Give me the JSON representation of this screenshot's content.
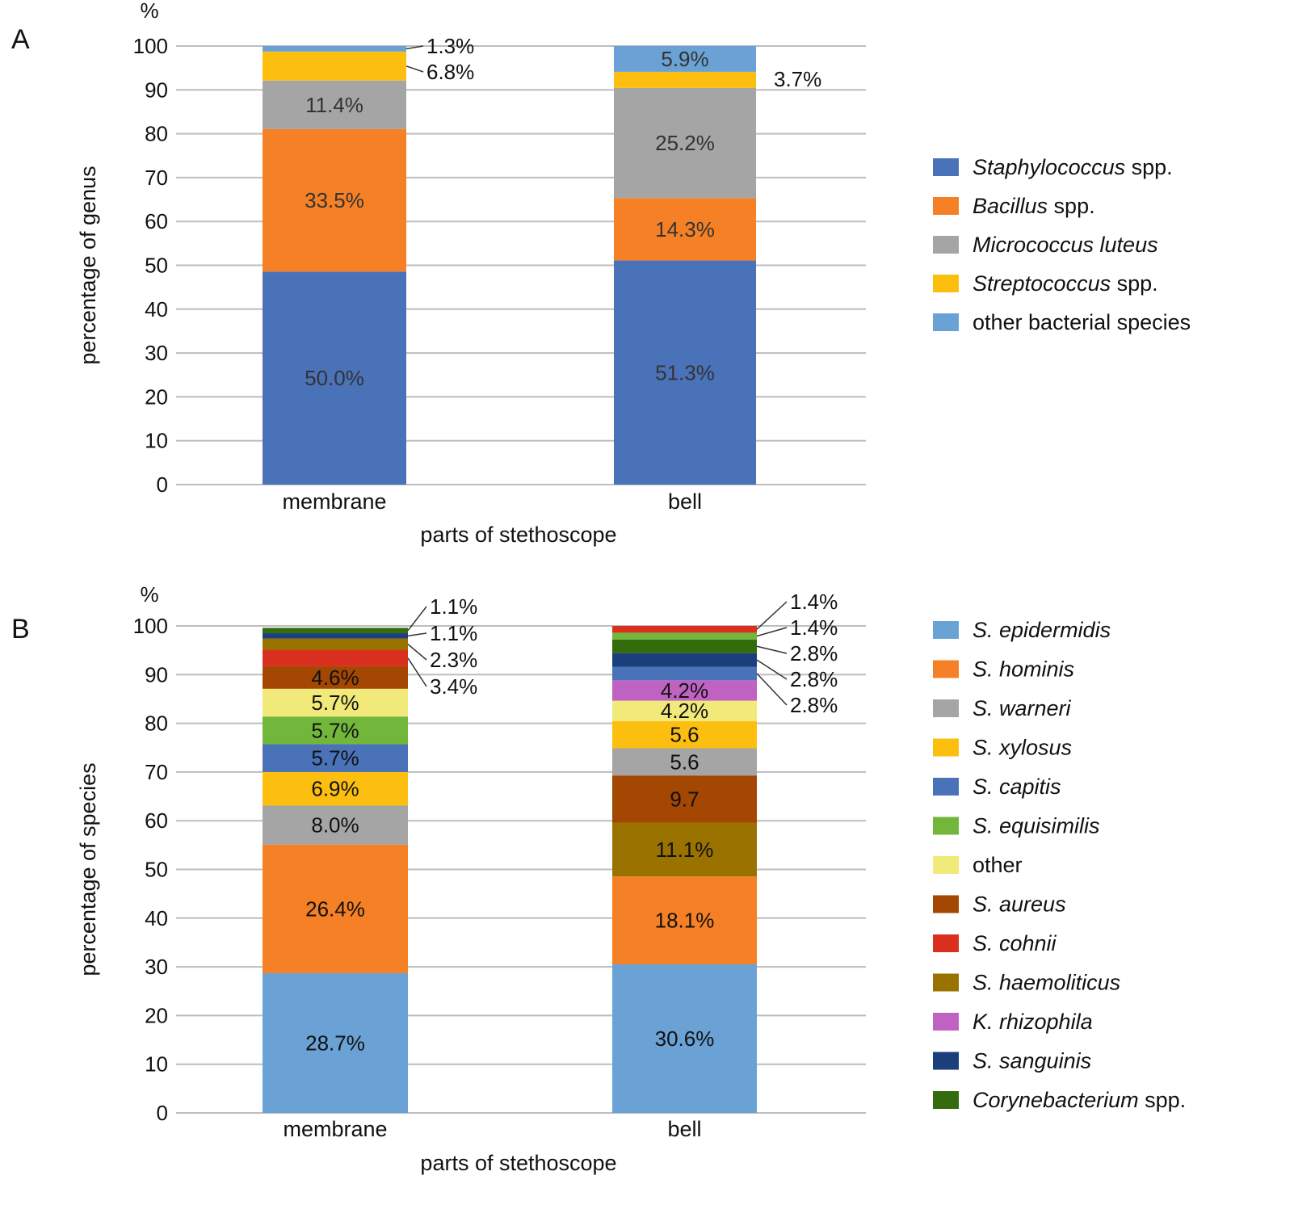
{
  "chart_data": [
    {
      "panel": "A",
      "type": "bar",
      "stacked": true,
      "unit_label": "%",
      "ylabel": "percentage of genus",
      "xlabel": "parts of stethoscope",
      "categories": [
        "membrane",
        "bell"
      ],
      "ylim": [
        0,
        100
      ],
      "yticks": [
        "0",
        "10",
        "20",
        "30",
        "40",
        "50",
        "60",
        "70",
        "80",
        "90",
        "100"
      ],
      "grid": true,
      "legend_position": "right",
      "series": [
        {
          "name_italic": "Staphylococcus",
          "name_plain": " spp.",
          "color": "#4a72b9",
          "values": [
            50.0,
            51.3
          ],
          "labels": [
            "50.0%",
            "51.3%"
          ]
        },
        {
          "name_italic": "Bacillus",
          "name_plain": " spp.",
          "color": "#f58025",
          "values": [
            33.5,
            14.3
          ],
          "labels": [
            "33.5%",
            "14.3%"
          ]
        },
        {
          "name_italic": "Micrococcus luteus",
          "name_plain": "",
          "color": "#a5a5a5",
          "values": [
            11.4,
            25.2
          ],
          "labels": [
            "11.4%",
            "25.2%"
          ]
        },
        {
          "name_italic": "Streptococcus",
          "name_plain": " spp.",
          "color": "#fdbf0f",
          "values": [
            6.8,
            3.7
          ],
          "labels": [
            "6.8%",
            "3.7%"
          ]
        },
        {
          "name_italic": "",
          "name_plain": "other bacterial species",
          "color": "#6aa2d5",
          "values": [
            1.3,
            5.9
          ],
          "labels": [
            "1.3%",
            "5.9%"
          ]
        }
      ]
    },
    {
      "panel": "B",
      "type": "bar",
      "stacked": true,
      "unit_label": "%",
      "ylabel": "percentage of species",
      "xlabel": "parts of stethoscope",
      "categories": [
        "membrane",
        "bell"
      ],
      "ylim": [
        0,
        100
      ],
      "yticks": [
        "0",
        "10",
        "20",
        "30",
        "40",
        "50",
        "60",
        "70",
        "80",
        "90",
        "100"
      ],
      "grid": true,
      "legend_position": "right",
      "series": [
        {
          "name_italic": "S. epidermidis",
          "name_plain": "",
          "color": "#6aa2d5",
          "values": [
            28.7,
            30.6
          ],
          "labels": [
            "28.7%",
            "30.6%"
          ]
        },
        {
          "name_italic": "S. hominis",
          "name_plain": "",
          "color": "#f58025",
          "values": [
            26.4,
            18.1
          ],
          "labels": [
            "26.4%",
            "18.1%"
          ]
        },
        {
          "name_italic": "S. warneri",
          "name_plain": "",
          "color": "#a5a5a5",
          "values": [
            8.0,
            5.6
          ],
          "labels": [
            "8.0%",
            "5.6"
          ]
        },
        {
          "name_italic": "S. xylosus",
          "name_plain": "",
          "color": "#fdbf0f",
          "values": [
            6.9,
            5.6
          ],
          "labels": [
            "6.9%",
            "5.6"
          ]
        },
        {
          "name_italic": "S. capitis",
          "name_plain": "",
          "color": "#4a72b9",
          "values": [
            5.7,
            2.8
          ],
          "labels": [
            "5.7%",
            "2.8%"
          ]
        },
        {
          "name_italic": "S. equisimilis",
          "name_plain": "",
          "color": "#72b73b",
          "values": [
            5.7,
            1.4
          ],
          "labels": [
            "5.7%",
            "1.4%"
          ]
        },
        {
          "name_italic": "",
          "name_plain": "other",
          "color": "#f1ea7a",
          "values": [
            5.7,
            4.2
          ],
          "labels": [
            "5.7%",
            "4.2%"
          ]
        },
        {
          "name_italic": "S. aureus",
          "name_plain": "",
          "color": "#a34702",
          "values": [
            4.6,
            9.7
          ],
          "labels": [
            "4.6%",
            "9.7"
          ]
        },
        {
          "name_italic": "S. cohnii",
          "name_plain": "",
          "color": "#d9301f",
          "values": [
            3.4,
            1.4
          ],
          "labels": [
            "3.4%",
            "1.4%"
          ]
        },
        {
          "name_italic": "S. haemoliticus",
          "name_plain": "",
          "color": "#9a7200",
          "values": [
            2.3,
            11.1
          ],
          "labels": [
            "2.3%",
            "11.1%"
          ]
        },
        {
          "name_italic": "K. rhizophila",
          "name_plain": "",
          "color": "#bf62c2",
          "values": [
            0,
            4.2
          ],
          "labels": [
            null,
            "4.2%"
          ]
        },
        {
          "name_italic": "S. sanguinis",
          "name_plain": "",
          "color": "#1b3f7a",
          "values": [
            1.1,
            2.8
          ],
          "labels": [
            "1.1%",
            "2.8%"
          ]
        },
        {
          "name_italic": "Corynebacterium",
          "name_plain": " spp.",
          "color": "#346b0c",
          "values": [
            1.1,
            2.8
          ],
          "labels": [
            "1.1%",
            "2.8%"
          ]
        }
      ],
      "stack_order_bottom_to_top": [
        [
          0,
          1,
          2,
          3,
          4,
          5,
          6,
          7,
          8,
          9,
          11,
          12
        ],
        [
          0,
          1,
          9,
          7,
          2,
          3,
          6,
          10,
          4,
          11,
          12,
          5,
          8
        ]
      ]
    }
  ]
}
